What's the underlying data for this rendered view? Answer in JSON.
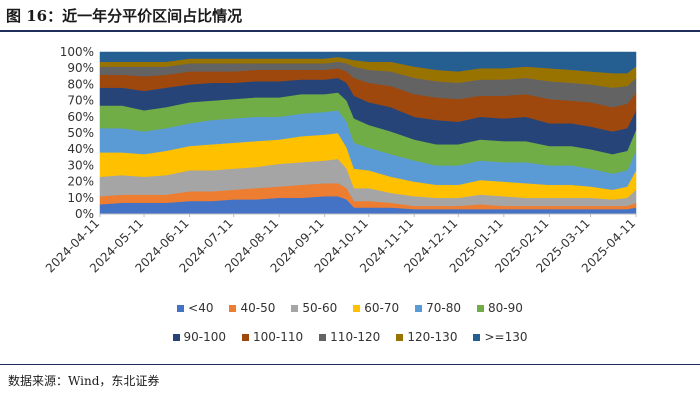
{
  "header": {
    "figure_label": "图 16：",
    "title": "近一年分平价区间占比情况"
  },
  "footer": {
    "source": "数据来源：Wind，东北证券"
  },
  "chart_data": {
    "type": "area",
    "stacked": true,
    "ylim": [
      0,
      100
    ],
    "y_ticks": [
      "0%",
      "10%",
      "20%",
      "30%",
      "40%",
      "50%",
      "60%",
      "70%",
      "80%",
      "90%",
      "100%"
    ],
    "x_ticks": [
      "2024-04-11",
      "2024-05-11",
      "2024-06-11",
      "2024-07-11",
      "2024-08-11",
      "2024-09-11",
      "2024-10-11",
      "2024-11-11",
      "2024-12-11",
      "2025-01-11",
      "2025-02-11",
      "2025-03-11",
      "2025-04-11"
    ],
    "x": [
      "2024-04-11",
      "2024-04-26",
      "2024-05-11",
      "2024-05-26",
      "2024-06-11",
      "2024-06-26",
      "2024-07-11",
      "2024-07-26",
      "2024-08-11",
      "2024-08-26",
      "2024-09-11",
      "2024-09-20",
      "2024-09-26",
      "2024-10-01",
      "2024-10-11",
      "2024-10-26",
      "2024-11-11",
      "2024-11-26",
      "2024-12-11",
      "2024-12-26",
      "2025-01-11",
      "2025-01-26",
      "2025-02-11",
      "2025-02-26",
      "2025-03-11",
      "2025-03-26",
      "2025-04-05",
      "2025-04-11"
    ],
    "legend_rows": [
      [
        "<40",
        "40-50",
        "50-60",
        "60-70",
        "70-80",
        "80-90"
      ],
      [
        "90-100",
        "100-110",
        "110-120",
        "120-130",
        ">=130"
      ]
    ],
    "series": [
      {
        "name": "<40",
        "color": "#4472c4",
        "values": [
          6,
          7,
          7,
          7,
          8,
          8,
          9,
          9,
          10,
          10,
          11,
          11,
          9,
          4,
          4,
          4,
          3,
          3,
          3,
          3,
          3,
          3,
          3,
          3,
          3,
          3,
          3,
          4
        ]
      },
      {
        "name": "40-50",
        "color": "#ed7d31",
        "values": [
          5,
          5,
          5,
          5,
          6,
          6,
          6,
          7,
          7,
          8,
          8,
          8,
          7,
          4,
          4,
          3,
          2,
          2,
          2,
          3,
          2,
          2,
          2,
          2,
          2,
          2,
          2,
          3
        ]
      },
      {
        "name": "50-60",
        "color": "#a5a5a5",
        "values": [
          12,
          12,
          11,
          12,
          13,
          13,
          13,
          13,
          14,
          14,
          14,
          15,
          12,
          8,
          8,
          6,
          6,
          5,
          5,
          6,
          6,
          5,
          5,
          5,
          5,
          4,
          5,
          8
        ]
      },
      {
        "name": "60-70",
        "color": "#ffc000",
        "values": [
          15,
          14,
          14,
          15,
          15,
          16,
          16,
          16,
          15,
          16,
          16,
          16,
          13,
          12,
          11,
          10,
          9,
          8,
          8,
          9,
          9,
          9,
          8,
          8,
          7,
          6,
          7,
          12
        ]
      },
      {
        "name": "70-80",
        "color": "#5b9bd5",
        "values": [
          15,
          15,
          14,
          14,
          14,
          15,
          15,
          15,
          14,
          14,
          14,
          14,
          16,
          16,
          14,
          14,
          13,
          12,
          12,
          12,
          12,
          13,
          12,
          12,
          11,
          10,
          10,
          12
        ]
      },
      {
        "name": "80-90",
        "color": "#70ad47",
        "values": [
          14,
          14,
          13,
          13,
          13,
          12,
          12,
          12,
          12,
          12,
          11,
          11,
          13,
          15,
          14,
          14,
          13,
          13,
          13,
          13,
          13,
          13,
          12,
          12,
          12,
          12,
          12,
          13
        ]
      },
      {
        "name": "90-100",
        "color": "#264478",
        "values": [
          11,
          11,
          12,
          12,
          11,
          11,
          10,
          10,
          10,
          9,
          9,
          9,
          11,
          14,
          14,
          15,
          14,
          15,
          14,
          14,
          14,
          15,
          14,
          14,
          14,
          14,
          14,
          12
        ]
      },
      {
        "name": "100-110",
        "color": "#9e480e",
        "values": [
          8,
          8,
          9,
          8,
          8,
          7,
          7,
          7,
          7,
          6,
          6,
          6,
          7,
          11,
          12,
          13,
          14,
          14,
          14,
          13,
          14,
          14,
          15,
          14,
          15,
          15,
          15,
          11
        ]
      },
      {
        "name": "110-120",
        "color": "#636363",
        "values": [
          5,
          5,
          6,
          5,
          5,
          5,
          5,
          4,
          4,
          4,
          4,
          4,
          5,
          7,
          8,
          9,
          10,
          10,
          10,
          10,
          10,
          10,
          11,
          11,
          11,
          12,
          11,
          9
        ]
      },
      {
        "name": "120-130",
        "color": "#997300",
        "values": [
          3,
          3,
          3,
          3,
          3,
          3,
          3,
          3,
          3,
          3,
          3,
          3,
          3,
          4,
          5,
          6,
          7,
          7,
          7,
          7,
          7,
          7,
          8,
          8,
          8,
          9,
          8,
          7
        ]
      },
      {
        "name": ">=130",
        "color": "#255e91",
        "values": [
          6,
          6,
          6,
          6,
          4,
          4,
          4,
          4,
          4,
          4,
          4,
          3,
          4,
          5,
          6,
          6,
          9,
          11,
          12,
          10,
          10,
          9,
          10,
          11,
          12,
          13,
          13,
          9
        ]
      }
    ]
  }
}
